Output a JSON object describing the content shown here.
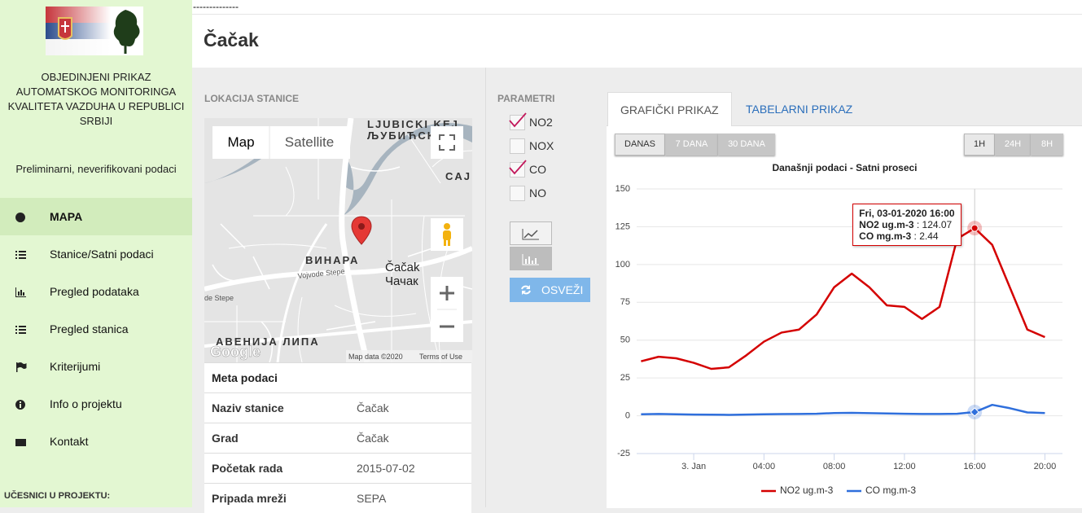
{
  "top_text": "--------------",
  "sidebar": {
    "title": "OBJEDINJENI PRIKAZ AUTOMATSKOG MONITORINGA KVALITETA VAZDUHA U REPUBLICI SRBIJI",
    "subtitle": "Preliminarni, neverifikovani podaci",
    "menu": [
      {
        "label": "MAPA",
        "active": true
      },
      {
        "label": "Stanice/Satni podaci",
        "active": false
      },
      {
        "label": "Pregled podataka",
        "active": false
      },
      {
        "label": "Pregled stanica",
        "active": false
      },
      {
        "label": "Kriterijumi",
        "active": false
      },
      {
        "label": "Info o projektu",
        "active": false
      },
      {
        "label": "Kontakt",
        "active": false
      }
    ],
    "footer": "UČESNICI U PROJEKTU:"
  },
  "header": {
    "title": "Čačak"
  },
  "location": {
    "label": "LOKACIJA STANICE",
    "map": {
      "buttons": [
        "Map",
        "Satellite"
      ],
      "labels": [
        "LJUBICKI KEJ",
        "ЉУБИЋСК",
        "CAJ",
        "ВИНАРА",
        "Čačak",
        "Чачак",
        "Vojvode Stepe",
        "de Stepe",
        "АВЕНИЈА ЛИПА"
      ],
      "attribution": "Map data ©2020",
      "terms": "Terms of Use",
      "logo": "Google"
    }
  },
  "meta": {
    "title": "Meta podaci",
    "rows": [
      [
        "Naziv stanice",
        "Čačak"
      ],
      [
        "Grad",
        "Čačak"
      ],
      [
        "Početak rada",
        "2015-07-02"
      ],
      [
        "Pripada mreži",
        "SEPA"
      ]
    ]
  },
  "parameters": {
    "label": "PARAMETRI",
    "items": [
      {
        "name": "NO2",
        "checked": true
      },
      {
        "name": "NOX",
        "checked": false
      },
      {
        "name": "CO",
        "checked": true
      },
      {
        "name": "NO",
        "checked": false
      }
    ],
    "refresh": "OSVEŽI"
  },
  "tabs": [
    {
      "label": "GRAFIČKI PRIKAZ",
      "active": true
    },
    {
      "label": "TABELARNI PRIKAZ",
      "active": false
    }
  ],
  "range_buttons": [
    {
      "label": "DANAS",
      "active": true
    },
    {
      "label": "7 DANA",
      "active": false
    },
    {
      "label": "30 DANA",
      "active": false
    }
  ],
  "interval_buttons": [
    {
      "label": "1H",
      "active": true
    },
    {
      "label": "24H",
      "active": false
    },
    {
      "label": "8H",
      "active": false
    }
  ],
  "chart_data": {
    "type": "line",
    "title": "Današnji podaci - Satni proseci",
    "x": [
      -3,
      -2,
      -1,
      0,
      1,
      2,
      3,
      4,
      5,
      6,
      7,
      8,
      9,
      10,
      11,
      12,
      13,
      14,
      15,
      16,
      17,
      18,
      19,
      20
    ],
    "xlim": [
      -3.25,
      21
    ],
    "xticks": [
      {
        "value": 0,
        "label": "3. Jan"
      },
      {
        "value": 4,
        "label": "04:00"
      },
      {
        "value": 8,
        "label": "08:00"
      },
      {
        "value": 12,
        "label": "12:00"
      },
      {
        "value": 16,
        "label": "16:00"
      },
      {
        "value": 20,
        "label": "20:00"
      }
    ],
    "ylim": [
      -25,
      150
    ],
    "yticks": [
      -25,
      0,
      25,
      50,
      75,
      100,
      125,
      150
    ],
    "grid": true,
    "legend": "bottom",
    "series": [
      {
        "name": "NO2 ug.m-3",
        "color": "#d40000",
        "values": [
          36,
          39,
          38,
          35,
          31,
          32,
          40,
          49,
          55,
          57,
          67,
          85,
          94,
          85,
          73,
          72,
          64,
          72,
          117,
          124.07,
          113,
          85,
          57,
          52
        ]
      },
      {
        "name": "CO mg.m-3",
        "color": "#2f6fdc",
        "values": [
          1,
          1.2,
          1,
          0.8,
          0.7,
          0.6,
          0.8,
          1,
          1.1,
          1.2,
          1.3,
          1.8,
          1.9,
          1.7,
          1.5,
          1.3,
          1.2,
          1.2,
          1.3,
          2.44,
          7.2,
          5,
          2.2,
          1.8
        ]
      }
    ],
    "tooltip": {
      "title": "Fri, 03-01-2020 16:00",
      "x": 16
    }
  }
}
